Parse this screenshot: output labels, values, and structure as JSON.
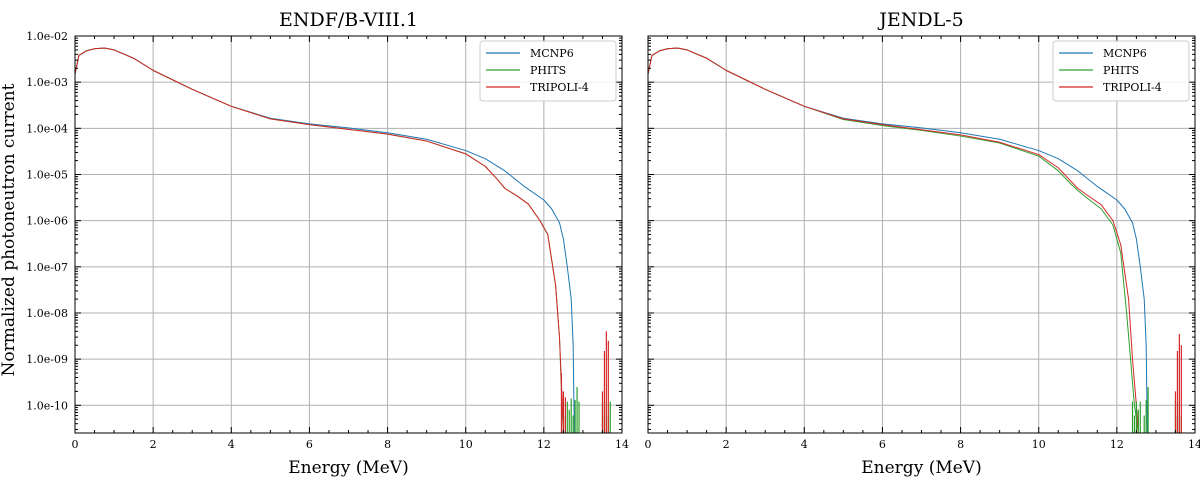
{
  "figure": {
    "ylabel": "Normalized photoneutron current"
  },
  "chart_data": [
    {
      "type": "line",
      "title": "ENDF/B-VIII.1",
      "xlabel": "Energy (MeV)",
      "ylabel": "Normalized photoneutron current",
      "xlim": [
        0,
        14
      ],
      "ylim_log10": [
        -10.6,
        -2
      ],
      "xticks": [
        0,
        2,
        4,
        6,
        8,
        10,
        12,
        14
      ],
      "yticks": [
        "1.0e-10",
        "1.0e-09",
        "1.0e-08",
        "1.0e-07",
        "1.0e-06",
        "1.0e-05",
        "1.0e-04",
        "1.0e-03",
        "1.0e-02"
      ],
      "grid": true,
      "legend_position": "top-right",
      "series": [
        {
          "name": "MCNP6",
          "color": "#1f77b4",
          "x": [
            0,
            0.1,
            0.3,
            0.5,
            0.75,
            1.0,
            1.5,
            2.0,
            3.0,
            4.0,
            5.0,
            6.0,
            7.0,
            8.0,
            9.0,
            10.0,
            10.5,
            11.0,
            11.5,
            12.0,
            12.2,
            12.4,
            12.5,
            12.6,
            12.7,
            12.75,
            12.78
          ],
          "y": [
            0.0015,
            0.0038,
            0.0048,
            0.0053,
            0.0055,
            0.005,
            0.0033,
            0.0018,
            0.0007,
            0.0003,
            0.000165,
            0.000125,
            0.000102,
            8e-05,
            5.8e-05,
            3.3e-05,
            2.2e-05,
            1.2e-05,
            5.5e-06,
            2.8e-06,
            1.8e-06,
            9e-07,
            4e-07,
            1e-07,
            2e-08,
            2e-09,
            2.5e-11
          ]
        },
        {
          "name": "PHITS",
          "color": "#2ca02c",
          "x": [
            0,
            0.1,
            0.3,
            0.5,
            0.75,
            1.0,
            1.5,
            2.0,
            3.0,
            4.0,
            5.0,
            6.0,
            7.0,
            8.0,
            9.0,
            10.0,
            10.5,
            10.8,
            11.0,
            11.3,
            11.6,
            11.9,
            12.1,
            12.3,
            12.4,
            12.45,
            12.5
          ],
          "y": [
            0.0015,
            0.0038,
            0.0048,
            0.0053,
            0.0055,
            0.005,
            0.0033,
            0.0018,
            0.0007,
            0.0003,
            0.00016,
            0.00012,
            9.5e-05,
            7.5e-05,
            5.3e-05,
            2.8e-05,
            1.5e-05,
            8e-06,
            5e-06,
            3.5e-06,
            2.3e-06,
            1e-06,
            5e-07,
            4e-08,
            3e-09,
            2e-10,
            2.5e-11
          ]
        },
        {
          "name": "TRIPOLI-4",
          "color": "#d62728",
          "x": [
            0,
            0.1,
            0.3,
            0.5,
            0.75,
            1.0,
            1.5,
            2.0,
            3.0,
            4.0,
            5.0,
            6.0,
            7.0,
            8.0,
            9.0,
            10.0,
            10.5,
            10.8,
            11.0,
            11.3,
            11.6,
            11.9,
            12.1,
            12.3,
            12.4,
            12.45,
            12.5
          ],
          "y": [
            0.0015,
            0.0038,
            0.0048,
            0.0053,
            0.0055,
            0.005,
            0.0033,
            0.0018,
            0.0007,
            0.0003,
            0.00016,
            0.00012,
            9.5e-05,
            7.5e-05,
            5.3e-05,
            2.8e-05,
            1.5e-05,
            8e-06,
            5e-06,
            3.5e-06,
            2.3e-06,
            1e-06,
            5e-07,
            4e-08,
            3e-09,
            3e-10,
            2.5e-11
          ]
        }
      ],
      "spikes": [
        {
          "series": "PHITS",
          "x": [
            12.5,
            12.55,
            12.6,
            12.65,
            12.7,
            12.75,
            12.8,
            12.85,
            12.9,
            13.5,
            13.55,
            13.6,
            13.65,
            13.7
          ],
          "y": [
            1.2e-10,
            6e-11,
            1.2e-10,
            8e-11,
            1.4e-10,
            6e-11,
            1.3e-10,
            2.5e-10,
            1.2e-10,
            1.2e-10,
            6e-11,
            1.2e-10,
            6e-11,
            1.2e-10
          ]
        },
        {
          "series": "TRIPOLI-4",
          "x": [
            12.45,
            12.5,
            12.55,
            13.5,
            13.55,
            13.6,
            13.65
          ],
          "y": [
            5e-10,
            2e-10,
            1.5e-10,
            2e-10,
            1.5e-09,
            4e-09,
            2.5e-09
          ]
        }
      ]
    },
    {
      "type": "line",
      "title": "JENDL-5",
      "xlabel": "Energy (MeV)",
      "ylabel": "",
      "xlim": [
        0,
        14
      ],
      "ylim_log10": [
        -10.6,
        -2
      ],
      "xticks": [
        0,
        2,
        4,
        6,
        8,
        10,
        12,
        14
      ],
      "yticks": [],
      "grid": true,
      "legend_position": "top-right",
      "series": [
        {
          "name": "MCNP6",
          "color": "#1f77b4",
          "x": [
            0,
            0.1,
            0.3,
            0.5,
            0.75,
            1.0,
            1.5,
            2.0,
            3.0,
            4.0,
            5.0,
            6.0,
            7.0,
            8.0,
            9.0,
            10.0,
            10.5,
            11.0,
            11.5,
            12.0,
            12.2,
            12.4,
            12.5,
            12.6,
            12.7,
            12.75,
            12.78
          ],
          "y": [
            0.0015,
            0.0038,
            0.0048,
            0.0053,
            0.0055,
            0.005,
            0.0033,
            0.0018,
            0.0007,
            0.0003,
            0.000165,
            0.000125,
            0.000102,
            8e-05,
            5.8e-05,
            3.3e-05,
            2.2e-05,
            1.2e-05,
            5.5e-06,
            2.8e-06,
            1.8e-06,
            9e-07,
            4e-07,
            1e-07,
            2e-08,
            2e-09,
            2.5e-11
          ]
        },
        {
          "name": "PHITS",
          "color": "#2ca02c",
          "x": [
            0,
            0.1,
            0.3,
            0.5,
            0.75,
            1.0,
            1.5,
            2.0,
            3.0,
            4.0,
            5.0,
            6.0,
            7.0,
            8.0,
            9.0,
            10.0,
            10.5,
            10.8,
            11.0,
            11.3,
            11.6,
            11.9,
            12.1,
            12.25,
            12.35,
            12.45,
            12.55
          ],
          "y": [
            0.0015,
            0.0038,
            0.0048,
            0.0053,
            0.0055,
            0.005,
            0.0033,
            0.0018,
            0.0007,
            0.0003,
            0.000155,
            0.000115,
            9e-05,
            6.8e-05,
            4.8e-05,
            2.5e-05,
            1.2e-05,
            6.5e-06,
            4.5e-06,
            2.8e-06,
            1.8e-06,
            8e-07,
            2e-07,
            1e-08,
            1e-09,
            1e-10,
            2.5e-11
          ]
        },
        {
          "name": "TRIPOLI-4",
          "color": "#d62728",
          "x": [
            0,
            0.1,
            0.3,
            0.5,
            0.75,
            1.0,
            1.5,
            2.0,
            3.0,
            4.0,
            5.0,
            6.0,
            7.0,
            8.0,
            9.0,
            10.0,
            10.5,
            10.8,
            11.0,
            11.3,
            11.6,
            11.9,
            12.1,
            12.3,
            12.4,
            12.5,
            12.55
          ],
          "y": [
            0.0015,
            0.0038,
            0.0048,
            0.0053,
            0.0055,
            0.005,
            0.0033,
            0.0018,
            0.0007,
            0.0003,
            0.00016,
            0.00012,
            9.3e-05,
            7.2e-05,
            5e-05,
            2.7e-05,
            1.4e-05,
            7.5e-06,
            5e-06,
            3.3e-06,
            2.2e-06,
            1e-06,
            3e-07,
            2e-08,
            1e-09,
            1e-10,
            2.5e-11
          ]
        }
      ],
      "spikes": [
        {
          "series": "PHITS",
          "x": [
            12.4,
            12.45,
            12.5,
            12.55,
            12.6,
            12.7,
            12.75,
            12.8,
            13.5,
            13.55,
            13.6,
            13.65
          ],
          "y": [
            1.2e-10,
            6e-11,
            1.2e-10,
            8e-11,
            1.2e-10,
            6e-11,
            1.3e-10,
            2.5e-10,
            1.2e-10,
            6e-11,
            1.2e-10,
            6e-11
          ]
        },
        {
          "series": "TRIPOLI-4",
          "x": [
            13.5,
            13.55,
            13.6,
            13.65
          ],
          "y": [
            2e-10,
            1.5e-09,
            3.5e-09,
            2e-09
          ]
        }
      ]
    }
  ]
}
